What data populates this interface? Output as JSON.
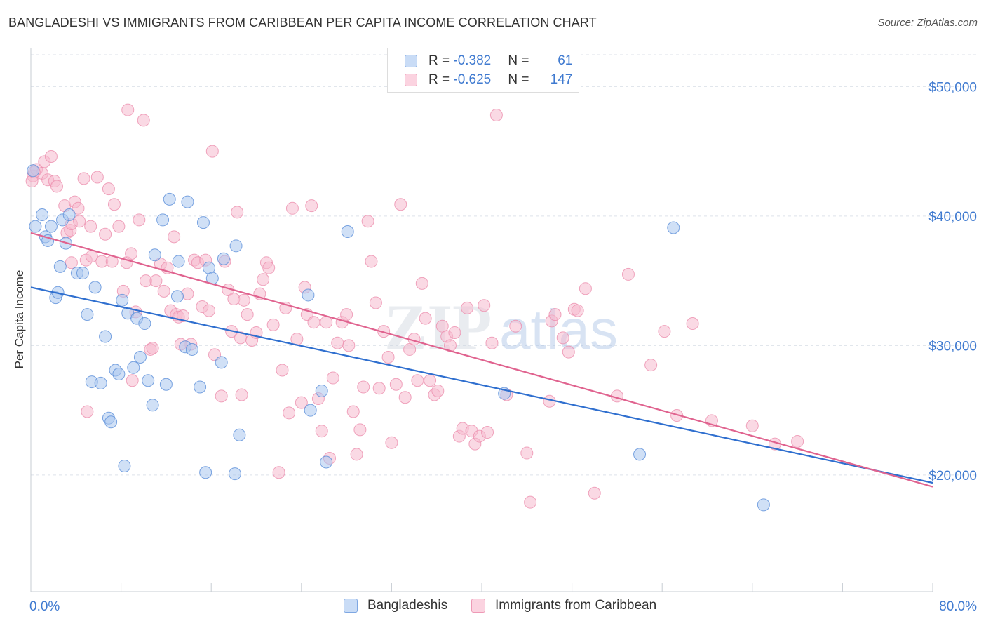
{
  "header": {
    "title": "BANGLADESHI VS IMMIGRANTS FROM CARIBBEAN PER CAPITA INCOME CORRELATION CHART",
    "source": "Source: ZipAtlas.com"
  },
  "watermark": {
    "zip": "ZIP",
    "atlas": "atlas"
  },
  "legend": {
    "rows": [
      {
        "r_label": "R = ",
        "r_value": "-0.382",
        "n_label": "N = ",
        "n_value": "61",
        "color": "#a9c6ef"
      },
      {
        "r_label": "R = ",
        "r_value": "-0.625",
        "n_label": "N = ",
        "n_value": "147",
        "color": "#f6b9cd"
      }
    ]
  },
  "bottom_legend": {
    "items": [
      {
        "label": "Bangladeshis",
        "color": "#a9c6ef"
      },
      {
        "label": "Immigrants from Caribbean",
        "color": "#f6b9cd"
      }
    ]
  },
  "chart_data": {
    "type": "scatter",
    "title": "BANGLADESHI VS IMMIGRANTS FROM CARIBBEAN PER CAPITA INCOME CORRELATION CHART",
    "xlabel": "",
    "ylabel": "Per Capita Income",
    "xlim": [
      0,
      80
    ],
    "ylim": [
      11000,
      53000
    ],
    "x_tick_labels": [
      "0.0%",
      "80.0%"
    ],
    "y_ticks": [
      {
        "value": 20000,
        "label": "$20,000"
      },
      {
        "value": 30000,
        "label": "$30,000"
      },
      {
        "value": 40000,
        "label": "$40,000"
      },
      {
        "value": 50000,
        "label": "$50,000"
      }
    ],
    "grid": true,
    "legend_position": "top-center",
    "series": [
      {
        "name": "Bangladeshis",
        "color": "#5b8fd9",
        "fill": "#a9c6ef",
        "trend": {
          "x": [
            0,
            80
          ],
          "y": [
            34500,
            19400
          ],
          "color": "#2f6fcf"
        },
        "points": [
          [
            0.2,
            43.5
          ],
          [
            0.4,
            39.2
          ],
          [
            1.0,
            40.1
          ],
          [
            1.3,
            38.4
          ],
          [
            1.5,
            38.1
          ],
          [
            1.8,
            39.2
          ],
          [
            2.2,
            33.7
          ],
          [
            2.4,
            34.1
          ],
          [
            2.6,
            36.1
          ],
          [
            2.8,
            39.7
          ],
          [
            3.1,
            37.9
          ],
          [
            3.4,
            40.1
          ],
          [
            4.1,
            35.6
          ],
          [
            4.6,
            35.6
          ],
          [
            5.0,
            32.4
          ],
          [
            5.4,
            27.2
          ],
          [
            5.7,
            34.5
          ],
          [
            6.2,
            27.1
          ],
          [
            6.6,
            30.7
          ],
          [
            6.9,
            24.4
          ],
          [
            7.1,
            24.1
          ],
          [
            7.5,
            28.1
          ],
          [
            7.8,
            27.8
          ],
          [
            8.1,
            33.5
          ],
          [
            8.3,
            20.7
          ],
          [
            8.6,
            32.5
          ],
          [
            9.1,
            28.3
          ],
          [
            9.4,
            32.1
          ],
          [
            9.7,
            29.1
          ],
          [
            10.1,
            31.7
          ],
          [
            10.4,
            27.3
          ],
          [
            10.8,
            25.4
          ],
          [
            11.0,
            37.0
          ],
          [
            11.7,
            39.7
          ],
          [
            12.0,
            27.0
          ],
          [
            12.3,
            41.3
          ],
          [
            13.0,
            33.8
          ],
          [
            13.1,
            36.5
          ],
          [
            13.7,
            29.9
          ],
          [
            13.9,
            41.1
          ],
          [
            14.3,
            29.7
          ],
          [
            15.0,
            26.8
          ],
          [
            15.3,
            39.5
          ],
          [
            15.5,
            20.2
          ],
          [
            15.8,
            36.0
          ],
          [
            16.1,
            35.2
          ],
          [
            16.9,
            28.7
          ],
          [
            17.1,
            36.7
          ],
          [
            18.1,
            20.1
          ],
          [
            18.2,
            37.7
          ],
          [
            18.5,
            23.1
          ],
          [
            24.6,
            33.9
          ],
          [
            24.8,
            25.0
          ],
          [
            25.8,
            26.5
          ],
          [
            26.2,
            21.0
          ],
          [
            28.1,
            38.8
          ],
          [
            42.0,
            26.3
          ],
          [
            54.0,
            21.6
          ],
          [
            57.0,
            39.1
          ],
          [
            65.0,
            17.7
          ]
        ]
      },
      {
        "name": "Immigrants from Caribbean",
        "color": "#ec8fae",
        "fill": "#f6b9cd",
        "trend": {
          "x": [
            0,
            80
          ],
          "y": [
            38700,
            19100
          ],
          "color": "#e0638f"
        },
        "points": [
          [
            0.2,
            43.1
          ],
          [
            0.5,
            43.6
          ],
          [
            1.0,
            43.3
          ],
          [
            1.2,
            44.2
          ],
          [
            1.5,
            42.8
          ],
          [
            1.8,
            44.6
          ],
          [
            2.1,
            42.7
          ],
          [
            2.3,
            42.3
          ],
          [
            3.0,
            40.8
          ],
          [
            3.2,
            38.7
          ],
          [
            3.5,
            38.9
          ],
          [
            3.6,
            39.4
          ],
          [
            3.9,
            41.1
          ],
          [
            4.2,
            40.6
          ],
          [
            4.3,
            39.6
          ],
          [
            4.7,
            42.9
          ],
          [
            4.9,
            36.6
          ],
          [
            5.3,
            39.2
          ],
          [
            5.4,
            36.9
          ],
          [
            5.9,
            43.0
          ],
          [
            6.3,
            36.5
          ],
          [
            6.6,
            38.6
          ],
          [
            6.9,
            42.1
          ],
          [
            7.2,
            36.5
          ],
          [
            7.4,
            40.9
          ],
          [
            7.8,
            39.2
          ],
          [
            8.2,
            34.2
          ],
          [
            8.5,
            36.4
          ],
          [
            8.6,
            48.2
          ],
          [
            8.9,
            37.1
          ],
          [
            9.3,
            32.6
          ],
          [
            9.6,
            39.7
          ],
          [
            10.0,
            47.4
          ],
          [
            10.2,
            35.0
          ],
          [
            10.6,
            29.7
          ],
          [
            10.8,
            29.8
          ],
          [
            11.1,
            35.0
          ],
          [
            11.5,
            36.3
          ],
          [
            11.8,
            34.2
          ],
          [
            12.1,
            36.0
          ],
          [
            12.4,
            32.7
          ],
          [
            12.7,
            38.4
          ],
          [
            12.9,
            32.4
          ],
          [
            13.1,
            32.2
          ],
          [
            13.5,
            32.3
          ],
          [
            13.9,
            34.0
          ],
          [
            14.2,
            30.1
          ],
          [
            14.5,
            36.6
          ],
          [
            14.8,
            36.4
          ],
          [
            15.2,
            33.0
          ],
          [
            15.5,
            36.6
          ],
          [
            15.8,
            32.7
          ],
          [
            16.1,
            45.0
          ],
          [
            16.3,
            29.3
          ],
          [
            16.9,
            26.1
          ],
          [
            17.2,
            36.5
          ],
          [
            17.5,
            34.3
          ],
          [
            17.8,
            31.1
          ],
          [
            18.0,
            33.6
          ],
          [
            18.3,
            40.3
          ],
          [
            18.6,
            30.6
          ],
          [
            18.9,
            33.5
          ],
          [
            19.2,
            32.4
          ],
          [
            19.6,
            30.4
          ],
          [
            20.0,
            31.0
          ],
          [
            20.3,
            34.0
          ],
          [
            20.6,
            35.1
          ],
          [
            20.9,
            36.4
          ],
          [
            21.1,
            36.0
          ],
          [
            21.5,
            31.6
          ],
          [
            22.0,
            20.2
          ],
          [
            22.3,
            28.1
          ],
          [
            22.6,
            32.9
          ],
          [
            22.9,
            24.8
          ],
          [
            23.2,
            40.6
          ],
          [
            23.6,
            30.5
          ],
          [
            24.0,
            25.6
          ],
          [
            24.3,
            34.5
          ],
          [
            24.5,
            32.4
          ],
          [
            24.9,
            40.8
          ],
          [
            25.1,
            31.8
          ],
          [
            25.5,
            25.9
          ],
          [
            25.8,
            23.4
          ],
          [
            26.2,
            31.8
          ],
          [
            26.5,
            21.3
          ],
          [
            26.8,
            27.5
          ],
          [
            27.2,
            30.2
          ],
          [
            27.6,
            31.8
          ],
          [
            28.0,
            32.4
          ],
          [
            28.2,
            30.0
          ],
          [
            28.6,
            24.9
          ],
          [
            28.9,
            21.6
          ],
          [
            29.2,
            23.5
          ],
          [
            29.5,
            26.8
          ],
          [
            29.9,
            39.6
          ],
          [
            30.2,
            36.5
          ],
          [
            30.6,
            33.3
          ],
          [
            30.9,
            26.7
          ],
          [
            31.3,
            31.1
          ],
          [
            31.7,
            29.1
          ],
          [
            32.0,
            22.5
          ],
          [
            32.4,
            27.0
          ],
          [
            32.8,
            40.9
          ],
          [
            33.2,
            26.0
          ],
          [
            33.6,
            29.7
          ],
          [
            34.0,
            30.5
          ],
          [
            34.3,
            27.3
          ],
          [
            34.7,
            34.8
          ],
          [
            35.0,
            32.1
          ],
          [
            35.4,
            27.3
          ],
          [
            35.8,
            26.2
          ],
          [
            36.1,
            26.5
          ],
          [
            36.5,
            31.5
          ],
          [
            36.9,
            30.7
          ],
          [
            37.2,
            30.0
          ],
          [
            37.6,
            31.0
          ],
          [
            38.0,
            23.0
          ],
          [
            38.3,
            23.6
          ],
          [
            38.7,
            32.9
          ],
          [
            39.1,
            23.4
          ],
          [
            39.4,
            22.4
          ],
          [
            39.8,
            23.0
          ],
          [
            40.2,
            33.1
          ],
          [
            40.5,
            23.3
          ],
          [
            40.9,
            30.2
          ],
          [
            41.3,
            47.8
          ],
          [
            42.2,
            26.2
          ],
          [
            43.0,
            31.5
          ],
          [
            44.0,
            21.7
          ],
          [
            44.3,
            17.9
          ],
          [
            46.0,
            25.7
          ],
          [
            46.2,
            31.9
          ],
          [
            46.5,
            32.4
          ],
          [
            47.2,
            30.6
          ],
          [
            47.7,
            29.5
          ],
          [
            48.2,
            32.8
          ],
          [
            48.5,
            32.7
          ],
          [
            49.2,
            34.4
          ],
          [
            50.0,
            18.6
          ],
          [
            52.0,
            26.1
          ],
          [
            53.0,
            35.5
          ],
          [
            55.0,
            28.5
          ],
          [
            56.2,
            31.1
          ],
          [
            57.3,
            24.6
          ],
          [
            58.7,
            31.7
          ],
          [
            60.4,
            24.2
          ],
          [
            64.0,
            23.8
          ],
          [
            66.0,
            22.4
          ],
          [
            68.0,
            22.6
          ],
          [
            0.1,
            42.7
          ],
          [
            0.3,
            43.4
          ],
          [
            18.7,
            26.2
          ],
          [
            13.3,
            30.1
          ],
          [
            9.0,
            27.3
          ],
          [
            5.0,
            24.9
          ],
          [
            3.6,
            36.4
          ]
        ]
      }
    ]
  }
}
